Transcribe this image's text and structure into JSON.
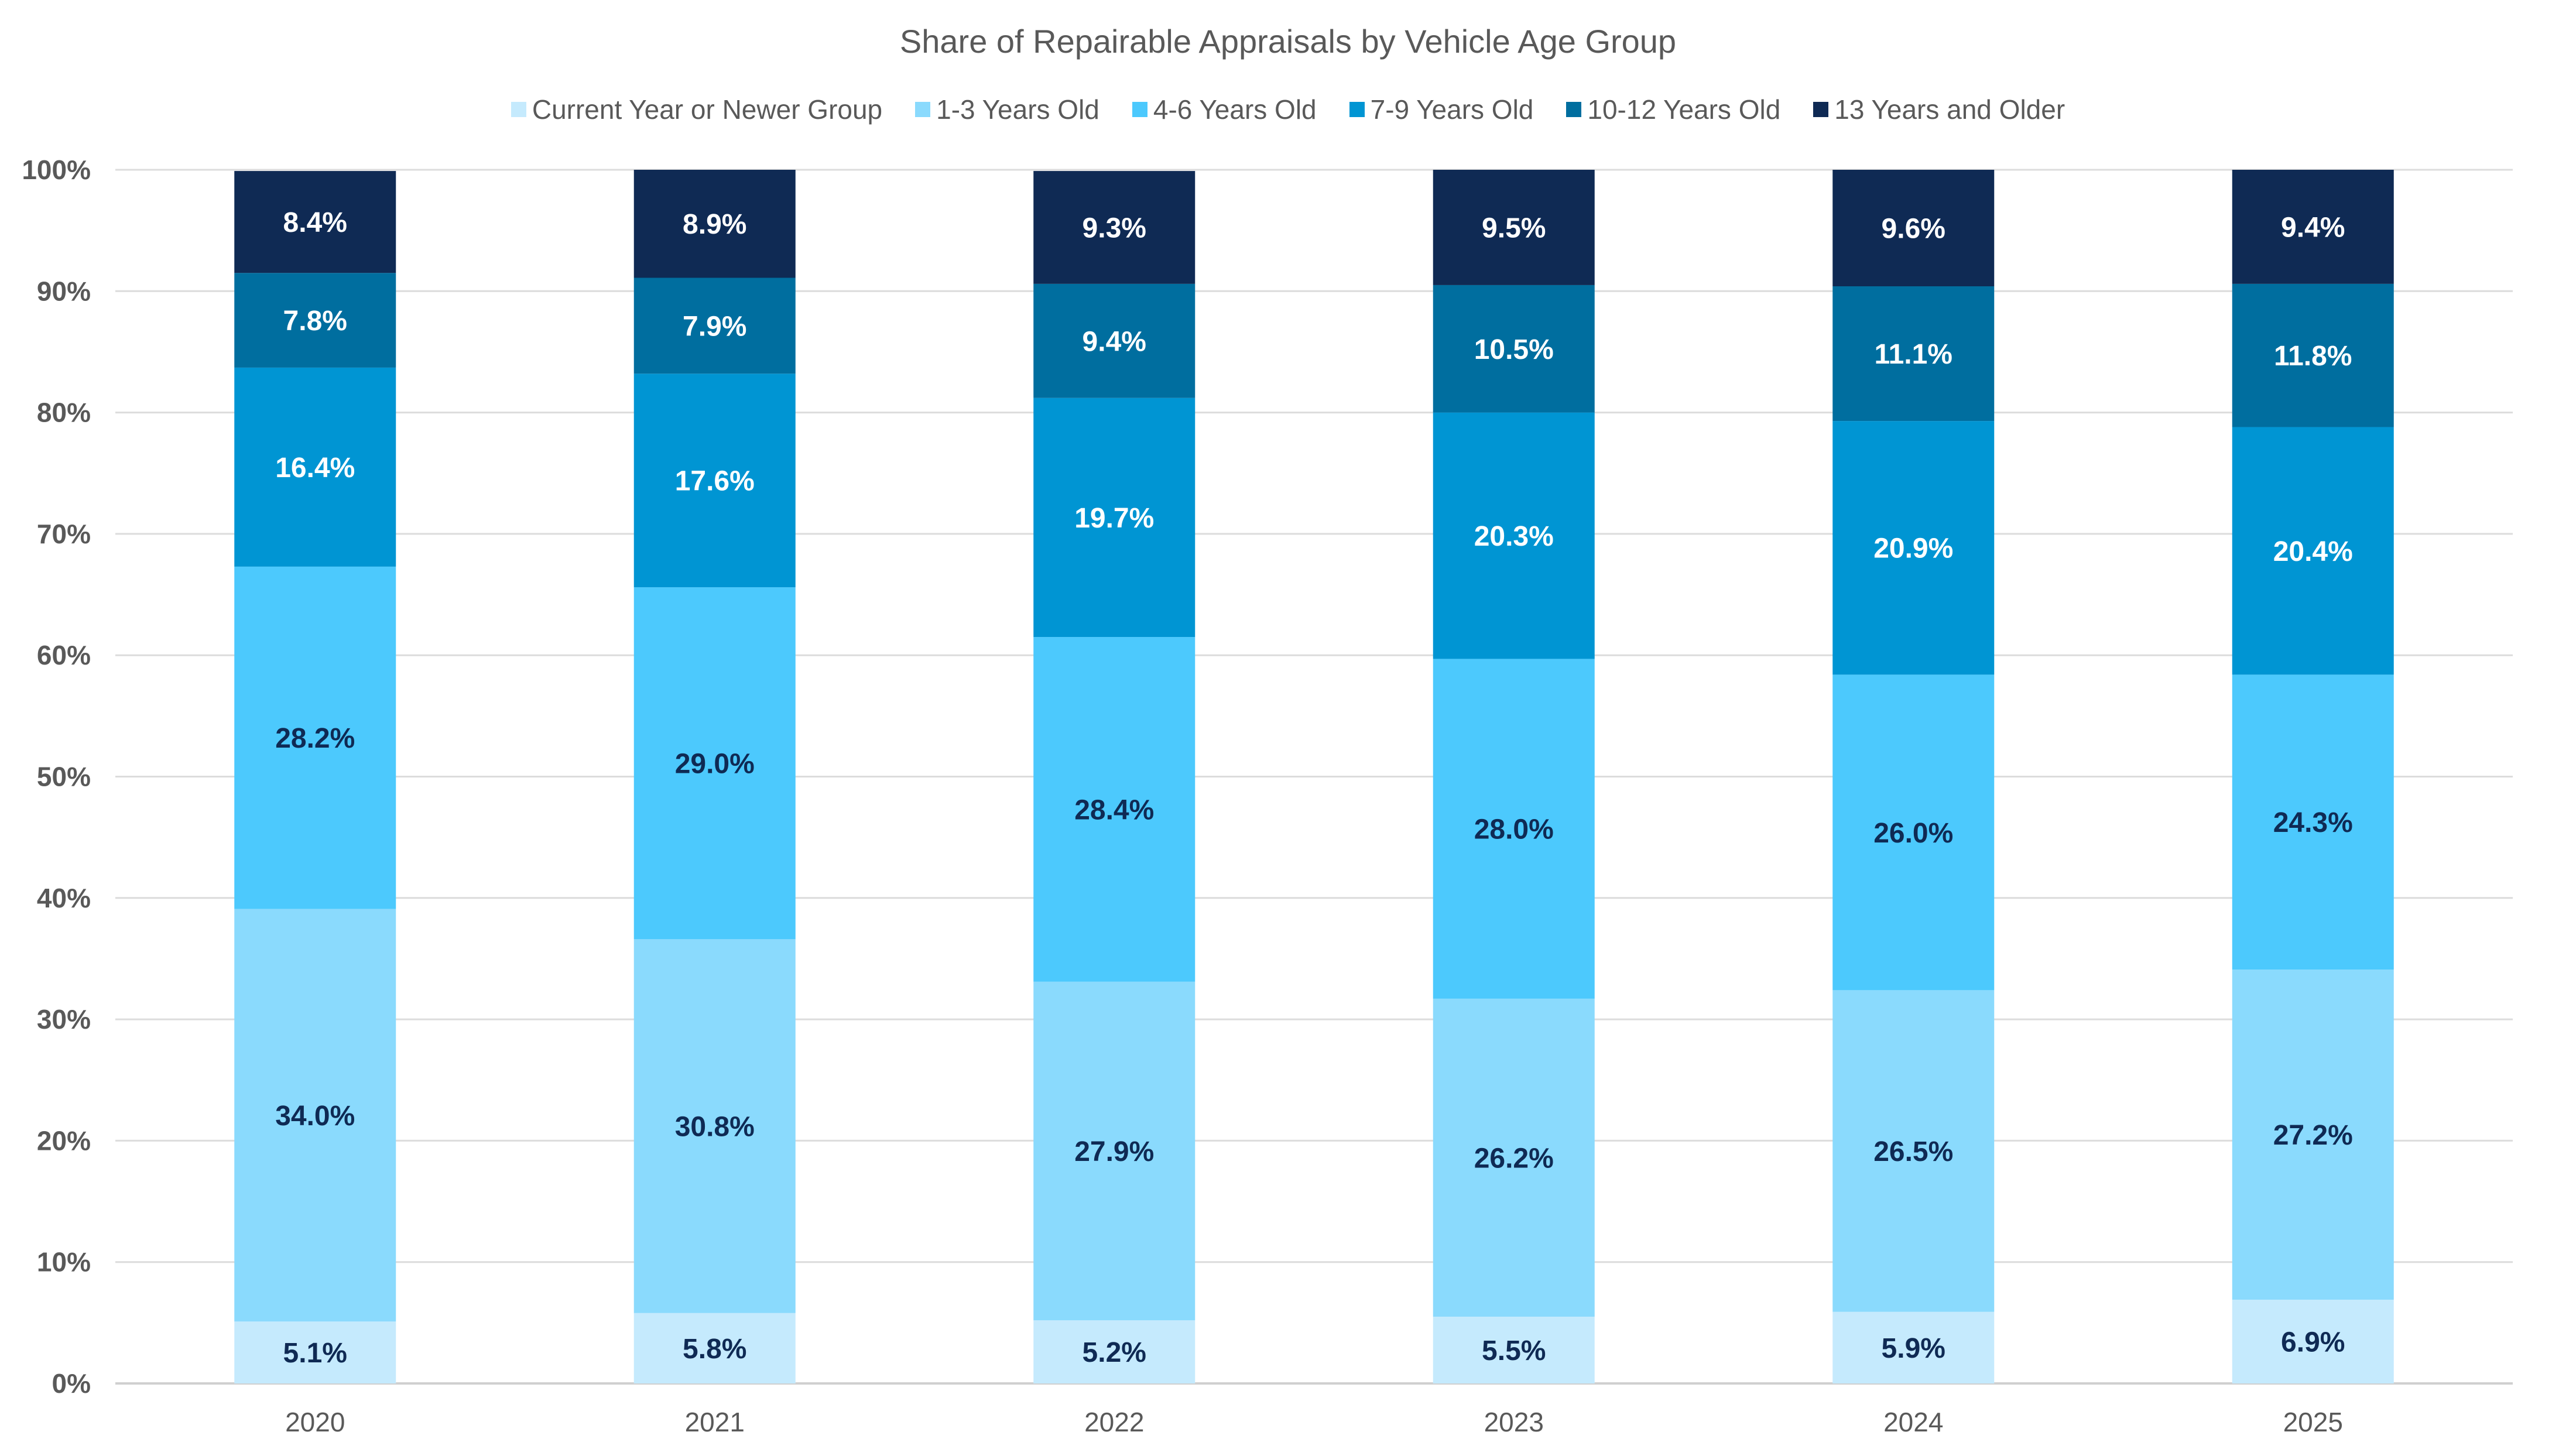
{
  "chart_data": {
    "type": "bar",
    "stacked": true,
    "title": "Share of Repairable Appraisals by Vehicle Age Group",
    "xlabel": "",
    "ylabel": "",
    "ylim": [
      0,
      100
    ],
    "yticks": [
      "0%",
      "10%",
      "20%",
      "30%",
      "40%",
      "50%",
      "60%",
      "70%",
      "80%",
      "90%",
      "100%"
    ],
    "grid": true,
    "legend_position": "top",
    "categories": [
      "2020",
      "2021",
      "2022",
      "2023",
      "2024",
      "2025"
    ],
    "series": [
      {
        "name": "Current Year or Newer Group",
        "color": "#C5EAFD",
        "label_color": "#0F2A54",
        "values": [
          5.1,
          5.8,
          5.2,
          5.5,
          5.9,
          6.9
        ]
      },
      {
        "name": "1-3 Years Old",
        "color": "#8ADAFD",
        "label_color": "#0F2A54",
        "values": [
          34.0,
          30.8,
          27.9,
          26.2,
          26.5,
          27.2
        ]
      },
      {
        "name": "4-6 Years Old",
        "color": "#4CC9FD",
        "label_color": "#0F2A54",
        "values": [
          28.2,
          29.0,
          28.4,
          28.0,
          26.0,
          24.3
        ]
      },
      {
        "name": "7-9 Years Old",
        "color": "#0095D3",
        "label_color": "#FFFFFF",
        "values": [
          16.4,
          17.6,
          19.7,
          20.3,
          20.9,
          20.4
        ]
      },
      {
        "name": "10-12 Years Old",
        "color": "#006E9F",
        "label_color": "#FFFFFF",
        "values": [
          7.8,
          7.9,
          9.4,
          10.5,
          11.1,
          11.8
        ]
      },
      {
        "name": "13 Years and Older",
        "color": "#0F2A54",
        "label_color": "#FFFFFF",
        "values": [
          8.4,
          8.9,
          9.3,
          9.5,
          9.6,
          9.4
        ]
      }
    ]
  }
}
